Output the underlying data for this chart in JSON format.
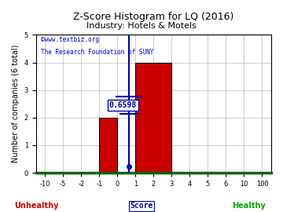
{
  "title": "Z-Score Histogram for LQ (2016)",
  "subtitle": "Industry: Hotels & Motels",
  "watermark1": "©www.textbiz.org",
  "watermark2": "The Research Foundation of SUNY",
  "xlabel_center": "Score",
  "xlabel_left": "Unhealthy",
  "xlabel_right": "Healthy",
  "ylabel": "Number of companies (6 total)",
  "xtick_labels": [
    "-10",
    "-5",
    "-2",
    "-1",
    "0",
    "1",
    "2",
    "3",
    "4",
    "5",
    "6",
    "10",
    "100"
  ],
  "yticks": [
    0,
    1,
    2,
    3,
    4,
    5
  ],
  "ylim": [
    0,
    5
  ],
  "bar_color": "#cc0000",
  "lq_label": "0.6598",
  "marker_color": "#0000aa",
  "line_color": "#0000aa",
  "bg_color": "#ffffff",
  "grid_color": "#bbbbbb",
  "healthy_color": "#00aa00",
  "unhealthy_color": "#cc0000",
  "title_color": "#000000",
  "subtitle_color": "#000000",
  "watermark_color": "#0000cc",
  "axis_bottom_color": "#006600",
  "title_fontsize": 9,
  "subtitle_fontsize": 8,
  "label_fontsize": 7,
  "tick_fontsize": 6
}
